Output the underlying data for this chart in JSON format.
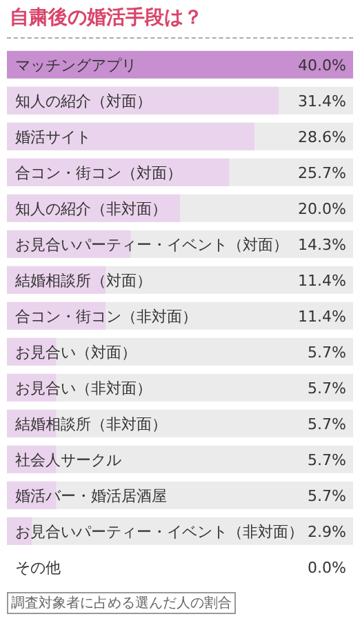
{
  "chart_data": {
    "type": "bar",
    "orientation": "horizontal",
    "title": "自粛後の婚活手段は？",
    "categories": [
      "マッチングアプリ",
      "知人の紹介（対面）",
      "婚活サイト",
      "合コン・街コン（対面）",
      "知人の紹介（非対面）",
      "お見合いパーティー・イベント（対面）",
      "結婚相談所（対面）",
      "合コン・街コン（非対面）",
      "お見合い（対面）",
      "お見合い（非対面）",
      "結婚相談所（非対面）",
      "社会人サークル",
      "婚活バー・婚活居酒屋",
      "お見合いパーティー・イベント（非対面）",
      "その他"
    ],
    "values": [
      40.0,
      31.4,
      28.6,
      25.7,
      20.0,
      14.3,
      11.4,
      11.4,
      5.7,
      5.7,
      5.7,
      5.7,
      5.7,
      2.9,
      0.0
    ],
    "value_labels": [
      "40.0%",
      "31.4%",
      "28.6%",
      "25.7%",
      "20.0%",
      "14.3%",
      "11.4%",
      "11.4%",
      "5.7%",
      "5.7%",
      "5.7%",
      "5.7%",
      "5.7%",
      "2.9%",
      "0.0%"
    ],
    "colors": [
      "#c78fcf",
      "#ead3ec",
      "#ead3ec",
      "#ead3ec",
      "#ead3ec",
      "#ead3ec",
      "#ead3ec",
      "#ead3ec",
      "#ead3ec",
      "#ead3ec",
      "#ead3ec",
      "#ead3ec",
      "#ead3ec",
      "#ead3ec",
      "#ead3ec"
    ],
    "xlim": [
      0,
      40
    ],
    "tick_labels": "y",
    "annotations": [
      "調査対象者に占める選んだ人の割合"
    ]
  }
}
